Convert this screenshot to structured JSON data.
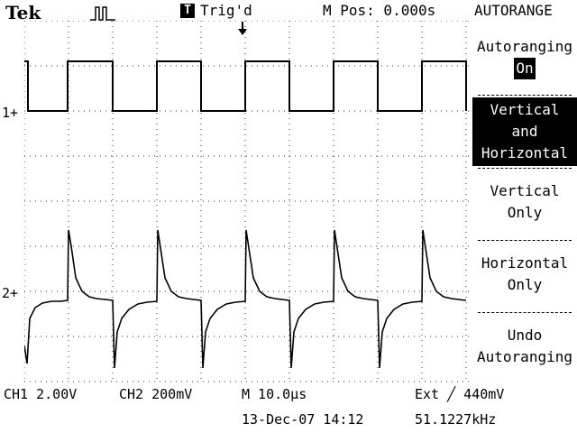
{
  "header": {
    "brand": "Tek",
    "trigger_status": "Trig'd",
    "trigger_icon": "T",
    "m_pos": "M Pos: 0.000s",
    "right_title": "AUTORANGE"
  },
  "menu": {
    "item_autoranging_label": "Autoranging",
    "item_autoranging_value": "On",
    "item_vertical_horizontal_line1": "Vertical",
    "item_vertical_horizontal_line2": "and",
    "item_vertical_horizontal_line3": "Horizontal",
    "item_vertical_only_line1": "Vertical",
    "item_vertical_only_line2": "Only",
    "item_horizontal_only_line1": "Horizontal",
    "item_horizontal_only_line2": "Only",
    "item_undo_line1": "Undo",
    "item_undo_line2": "Autoranging"
  },
  "traces": {
    "ch1_marker": "1+",
    "ch2_marker": "2+"
  },
  "footer": {
    "ch1": "CH1  2.00V",
    "ch2": "CH2  200mV",
    "timebase": "M 10.0µs",
    "ext": "Ext  ╱  440mV",
    "date": "13-Dec-07 14:12",
    "freq": "51.1227kHz"
  },
  "colors": {
    "background": "#ffffff",
    "foreground": "#000000"
  }
}
